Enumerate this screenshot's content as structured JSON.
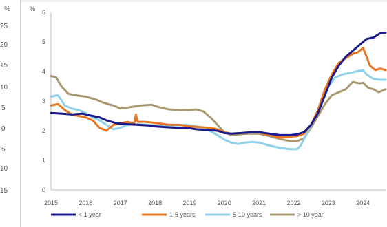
{
  "left_strip": {
    "fragments": [
      "%",
      "25",
      "20",
      "15",
      "10",
      "5",
      "0",
      "5",
      "10",
      "15"
    ]
  },
  "chart_data": {
    "type": "line",
    "ylabel": "%",
    "xlabel": "",
    "title": "",
    "ylim": [
      0,
      6
    ],
    "yticks": [
      "0",
      "1",
      "2",
      "3",
      "4",
      "5",
      "6"
    ],
    "xlim": [
      2015,
      2024.65
    ],
    "xtick_values": [
      2015,
      2016,
      2017,
      2018,
      2019,
      2020,
      2021,
      2022,
      2023,
      2024
    ],
    "xticks": [
      "2015",
      "2016",
      "2017",
      "2018",
      "2019",
      "2020",
      "2021",
      "2022",
      "2023",
      "2024"
    ],
    "grid": false,
    "legend_position": "bottom",
    "series": [
      {
        "name": "< 1 year",
        "color": "#1a1a8c",
        "points": [
          [
            2015,
            2.6
          ],
          [
            2015.3,
            2.58
          ],
          [
            2015.6,
            2.55
          ],
          [
            2015.9,
            2.58
          ],
          [
            2016.2,
            2.5
          ],
          [
            2016.4,
            2.45
          ],
          [
            2016.6,
            2.35
          ],
          [
            2016.9,
            2.25
          ],
          [
            2017.2,
            2.22
          ],
          [
            2017.5,
            2.2
          ],
          [
            2017.8,
            2.18
          ],
          [
            2018,
            2.15
          ],
          [
            2018.3,
            2.12
          ],
          [
            2018.6,
            2.1
          ],
          [
            2018.9,
            2.1
          ],
          [
            2019.2,
            2.05
          ],
          [
            2019.5,
            2.02
          ],
          [
            2019.8,
            2.0
          ],
          [
            2020,
            1.92
          ],
          [
            2020.2,
            1.9
          ],
          [
            2020.5,
            1.92
          ],
          [
            2020.8,
            1.95
          ],
          [
            2021,
            1.95
          ],
          [
            2021.3,
            1.9
          ],
          [
            2021.6,
            1.85
          ],
          [
            2021.9,
            1.85
          ],
          [
            2022.1,
            1.88
          ],
          [
            2022.3,
            1.95
          ],
          [
            2022.5,
            2.2
          ],
          [
            2022.7,
            2.6
          ],
          [
            2022.9,
            3.2
          ],
          [
            2023.1,
            3.8
          ],
          [
            2023.3,
            4.2
          ],
          [
            2023.5,
            4.5
          ],
          [
            2023.7,
            4.7
          ],
          [
            2023.9,
            4.9
          ],
          [
            2024.1,
            5.1
          ],
          [
            2024.3,
            5.15
          ],
          [
            2024.5,
            5.3
          ],
          [
            2024.65,
            5.32
          ]
        ]
      },
      {
        "name": "1-5 years",
        "color": "#e87722",
        "points": [
          [
            2015,
            2.85
          ],
          [
            2015.2,
            2.9
          ],
          [
            2015.4,
            2.7
          ],
          [
            2015.6,
            2.55
          ],
          [
            2015.8,
            2.5
          ],
          [
            2016,
            2.45
          ],
          [
            2016.2,
            2.35
          ],
          [
            2016.4,
            2.1
          ],
          [
            2016.6,
            2.0
          ],
          [
            2016.8,
            2.2
          ],
          [
            2017,
            2.25
          ],
          [
            2017.2,
            2.3
          ],
          [
            2017.4,
            2.25
          ],
          [
            2017.45,
            2.55
          ],
          [
            2017.5,
            2.3
          ],
          [
            2017.7,
            2.3
          ],
          [
            2017.9,
            2.28
          ],
          [
            2018.1,
            2.25
          ],
          [
            2018.4,
            2.2
          ],
          [
            2018.7,
            2.2
          ],
          [
            2019,
            2.15
          ],
          [
            2019.3,
            2.12
          ],
          [
            2019.6,
            2.1
          ],
          [
            2019.8,
            2.05
          ],
          [
            2020,
            1.95
          ],
          [
            2020.2,
            1.9
          ],
          [
            2020.5,
            1.92
          ],
          [
            2020.8,
            1.95
          ],
          [
            2021,
            1.95
          ],
          [
            2021.3,
            1.85
          ],
          [
            2021.6,
            1.78
          ],
          [
            2021.9,
            1.8
          ],
          [
            2022.1,
            1.82
          ],
          [
            2022.3,
            1.9
          ],
          [
            2022.5,
            2.2
          ],
          [
            2022.7,
            2.7
          ],
          [
            2022.9,
            3.4
          ],
          [
            2023.1,
            3.9
          ],
          [
            2023.3,
            4.3
          ],
          [
            2023.5,
            4.45
          ],
          [
            2023.7,
            4.6
          ],
          [
            2023.85,
            4.65
          ],
          [
            2024,
            4.8
          ],
          [
            2024.1,
            4.5
          ],
          [
            2024.2,
            4.2
          ],
          [
            2024.35,
            4.05
          ],
          [
            2024.5,
            4.1
          ],
          [
            2024.65,
            4.05
          ]
        ]
      },
      {
        "name": "5-10 years",
        "color": "#8fd0ea",
        "points": [
          [
            2015,
            3.15
          ],
          [
            2015.2,
            3.2
          ],
          [
            2015.4,
            2.85
          ],
          [
            2015.6,
            2.75
          ],
          [
            2015.8,
            2.7
          ],
          [
            2016,
            2.6
          ],
          [
            2016.2,
            2.45
          ],
          [
            2016.4,
            2.35
          ],
          [
            2016.6,
            2.2
          ],
          [
            2016.8,
            2.05
          ],
          [
            2017,
            2.1
          ],
          [
            2017.2,
            2.2
          ],
          [
            2017.5,
            2.22
          ],
          [
            2017.8,
            2.2
          ],
          [
            2018,
            2.18
          ],
          [
            2018.3,
            2.15
          ],
          [
            2018.6,
            2.18
          ],
          [
            2018.9,
            2.2
          ],
          [
            2019.2,
            2.15
          ],
          [
            2019.5,
            2.05
          ],
          [
            2019.8,
            1.85
          ],
          [
            2020,
            1.7
          ],
          [
            2020.2,
            1.6
          ],
          [
            2020.4,
            1.55
          ],
          [
            2020.6,
            1.6
          ],
          [
            2020.8,
            1.62
          ],
          [
            2021,
            1.6
          ],
          [
            2021.3,
            1.5
          ],
          [
            2021.6,
            1.42
          ],
          [
            2021.9,
            1.38
          ],
          [
            2022.1,
            1.38
          ],
          [
            2022.2,
            1.5
          ],
          [
            2022.4,
            1.95
          ],
          [
            2022.6,
            2.4
          ],
          [
            2022.8,
            3.0
          ],
          [
            2023,
            3.5
          ],
          [
            2023.2,
            3.8
          ],
          [
            2023.4,
            3.9
          ],
          [
            2023.6,
            3.95
          ],
          [
            2023.8,
            4.0
          ],
          [
            2024,
            4.05
          ],
          [
            2024.1,
            3.9
          ],
          [
            2024.3,
            3.75
          ],
          [
            2024.5,
            3.72
          ],
          [
            2024.65,
            3.72
          ]
        ]
      },
      {
        "name": "> 10 year",
        "color": "#a89a6e",
        "points": [
          [
            2015,
            3.85
          ],
          [
            2015.15,
            3.8
          ],
          [
            2015.3,
            3.5
          ],
          [
            2015.5,
            3.25
          ],
          [
            2015.7,
            3.2
          ],
          [
            2016,
            3.15
          ],
          [
            2016.3,
            3.05
          ],
          [
            2016.5,
            2.95
          ],
          [
            2016.8,
            2.85
          ],
          [
            2017,
            2.75
          ],
          [
            2017.3,
            2.8
          ],
          [
            2017.6,
            2.85
          ],
          [
            2017.9,
            2.88
          ],
          [
            2018.1,
            2.8
          ],
          [
            2018.4,
            2.72
          ],
          [
            2018.7,
            2.7
          ],
          [
            2019,
            2.7
          ],
          [
            2019.2,
            2.72
          ],
          [
            2019.4,
            2.65
          ],
          [
            2019.6,
            2.45
          ],
          [
            2019.8,
            2.2
          ],
          [
            2020,
            1.95
          ],
          [
            2020.2,
            1.85
          ],
          [
            2020.4,
            1.88
          ],
          [
            2020.7,
            1.9
          ],
          [
            2021,
            1.9
          ],
          [
            2021.3,
            1.82
          ],
          [
            2021.6,
            1.72
          ],
          [
            2021.9,
            1.65
          ],
          [
            2022.1,
            1.65
          ],
          [
            2022.3,
            1.75
          ],
          [
            2022.5,
            2.1
          ],
          [
            2022.7,
            2.5
          ],
          [
            2022.9,
            2.9
          ],
          [
            2023.1,
            3.2
          ],
          [
            2023.3,
            3.3
          ],
          [
            2023.5,
            3.4
          ],
          [
            2023.7,
            3.65
          ],
          [
            2023.9,
            3.6
          ],
          [
            2024,
            3.62
          ],
          [
            2024.15,
            3.45
          ],
          [
            2024.3,
            3.4
          ],
          [
            2024.45,
            3.3
          ],
          [
            2024.65,
            3.4
          ]
        ]
      }
    ]
  }
}
